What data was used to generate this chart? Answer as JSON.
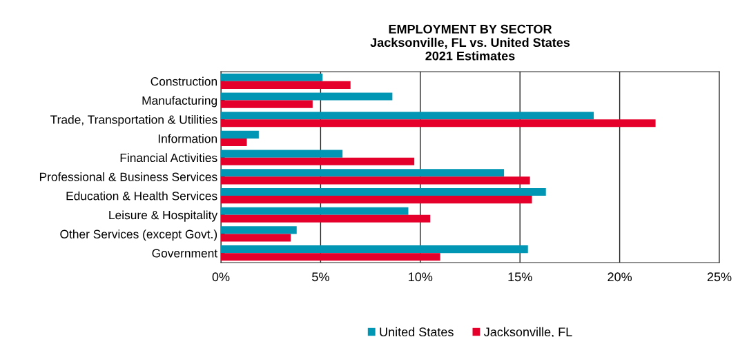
{
  "chart_data": {
    "type": "bar",
    "orientation": "horizontal",
    "title": "EMPLOYMENT BY SECTOR\nJacksonville, FL vs. United States\n2021 Estimates",
    "categories": [
      "Construction",
      "Manufacturing",
      "Trade, Transportation & Utilities",
      "Information",
      "Financial Activities",
      "Professional & Business Services",
      "Education & Health Services",
      "Leisure & Hospitality",
      "Other Services (except Govt.)",
      "Government"
    ],
    "series": [
      {
        "name": "United States",
        "color": "#0096b4",
        "values": [
          5.1,
          8.6,
          18.7,
          1.9,
          6.1,
          14.2,
          16.3,
          9.4,
          3.8,
          15.4
        ]
      },
      {
        "name": "Jacksonville, FL",
        "color": "#e4002b",
        "values": [
          6.5,
          4.6,
          21.8,
          1.3,
          9.7,
          15.5,
          15.6,
          10.5,
          3.5,
          11.0
        ]
      }
    ],
    "xlim": [
      0,
      25
    ],
    "xticks": [
      {
        "value": 0,
        "label": "0%"
      },
      {
        "value": 5,
        "label": "5%"
      },
      {
        "value": 10,
        "label": "10%"
      },
      {
        "value": 15,
        "label": "15%"
      },
      {
        "value": 20,
        "label": "20%"
      },
      {
        "value": 25,
        "label": "25%"
      }
    ],
    "grid": "x",
    "legend": "bottom"
  }
}
